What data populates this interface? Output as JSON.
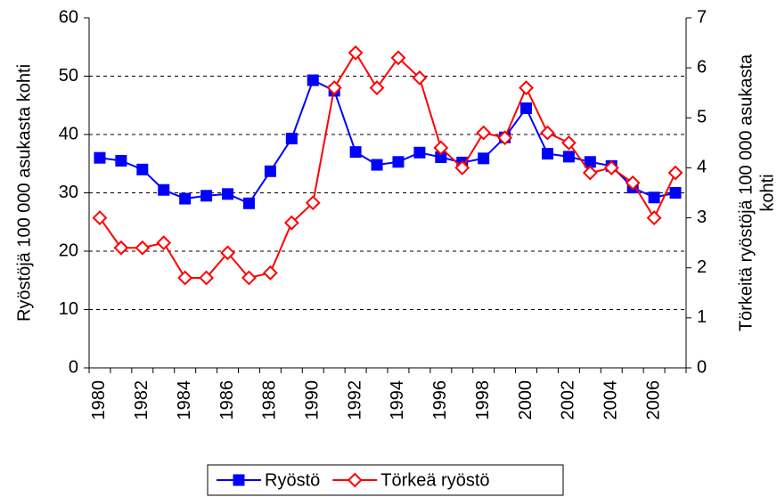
{
  "chart_data": {
    "type": "line",
    "ylabel": "Ryöstöjä 100 000 asukasta kohti",
    "y2label": [
      "Törkeitä ryöstöjä 100 000 asukasta",
      "kohti"
    ],
    "categories": [
      "1980",
      null,
      "1982",
      null,
      "1984",
      null,
      "1986",
      null,
      "1988",
      null,
      "1990",
      null,
      "1992",
      null,
      "1994",
      null,
      "1996",
      null,
      "1998",
      null,
      "2000",
      null,
      "2002",
      null,
      "2004",
      null,
      "2006",
      null
    ],
    "series": [
      {
        "name": "Ryöstö",
        "color": "#0000ff",
        "marker": "square",
        "values": [
          36.0,
          35.5,
          34.0,
          30.5,
          29.0,
          29.5,
          29.8,
          28.2,
          33.7,
          39.3,
          49.3,
          47.5,
          37.0,
          34.8,
          35.3,
          36.9,
          36.1,
          35.2,
          35.9,
          39.5,
          44.5,
          36.7,
          36.2,
          35.3,
          34.6,
          30.9,
          29.2,
          30.0
        ]
      },
      {
        "name": "Törkeä ryöstö",
        "color": "#ff0000",
        "marker": "diamond",
        "axis": "y2",
        "values": [
          3.0,
          2.4,
          2.4,
          2.5,
          1.8,
          1.8,
          2.3,
          1.8,
          1.9,
          2.9,
          3.3,
          5.6,
          6.3,
          5.6,
          6.2,
          5.8,
          4.4,
          4.0,
          4.7,
          4.6,
          5.6,
          4.7,
          4.5,
          3.9,
          4.0,
          3.7,
          3.0,
          3.9
        ]
      }
    ],
    "ylim": [
      0,
      60
    ],
    "yticks": [
      0,
      10,
      20,
      30,
      40,
      50,
      60
    ],
    "y2lim": [
      0,
      7
    ],
    "y2ticks": [
      0,
      1,
      2,
      3,
      4,
      5,
      6,
      7
    ],
    "grid": true,
    "legend": "bottom"
  }
}
